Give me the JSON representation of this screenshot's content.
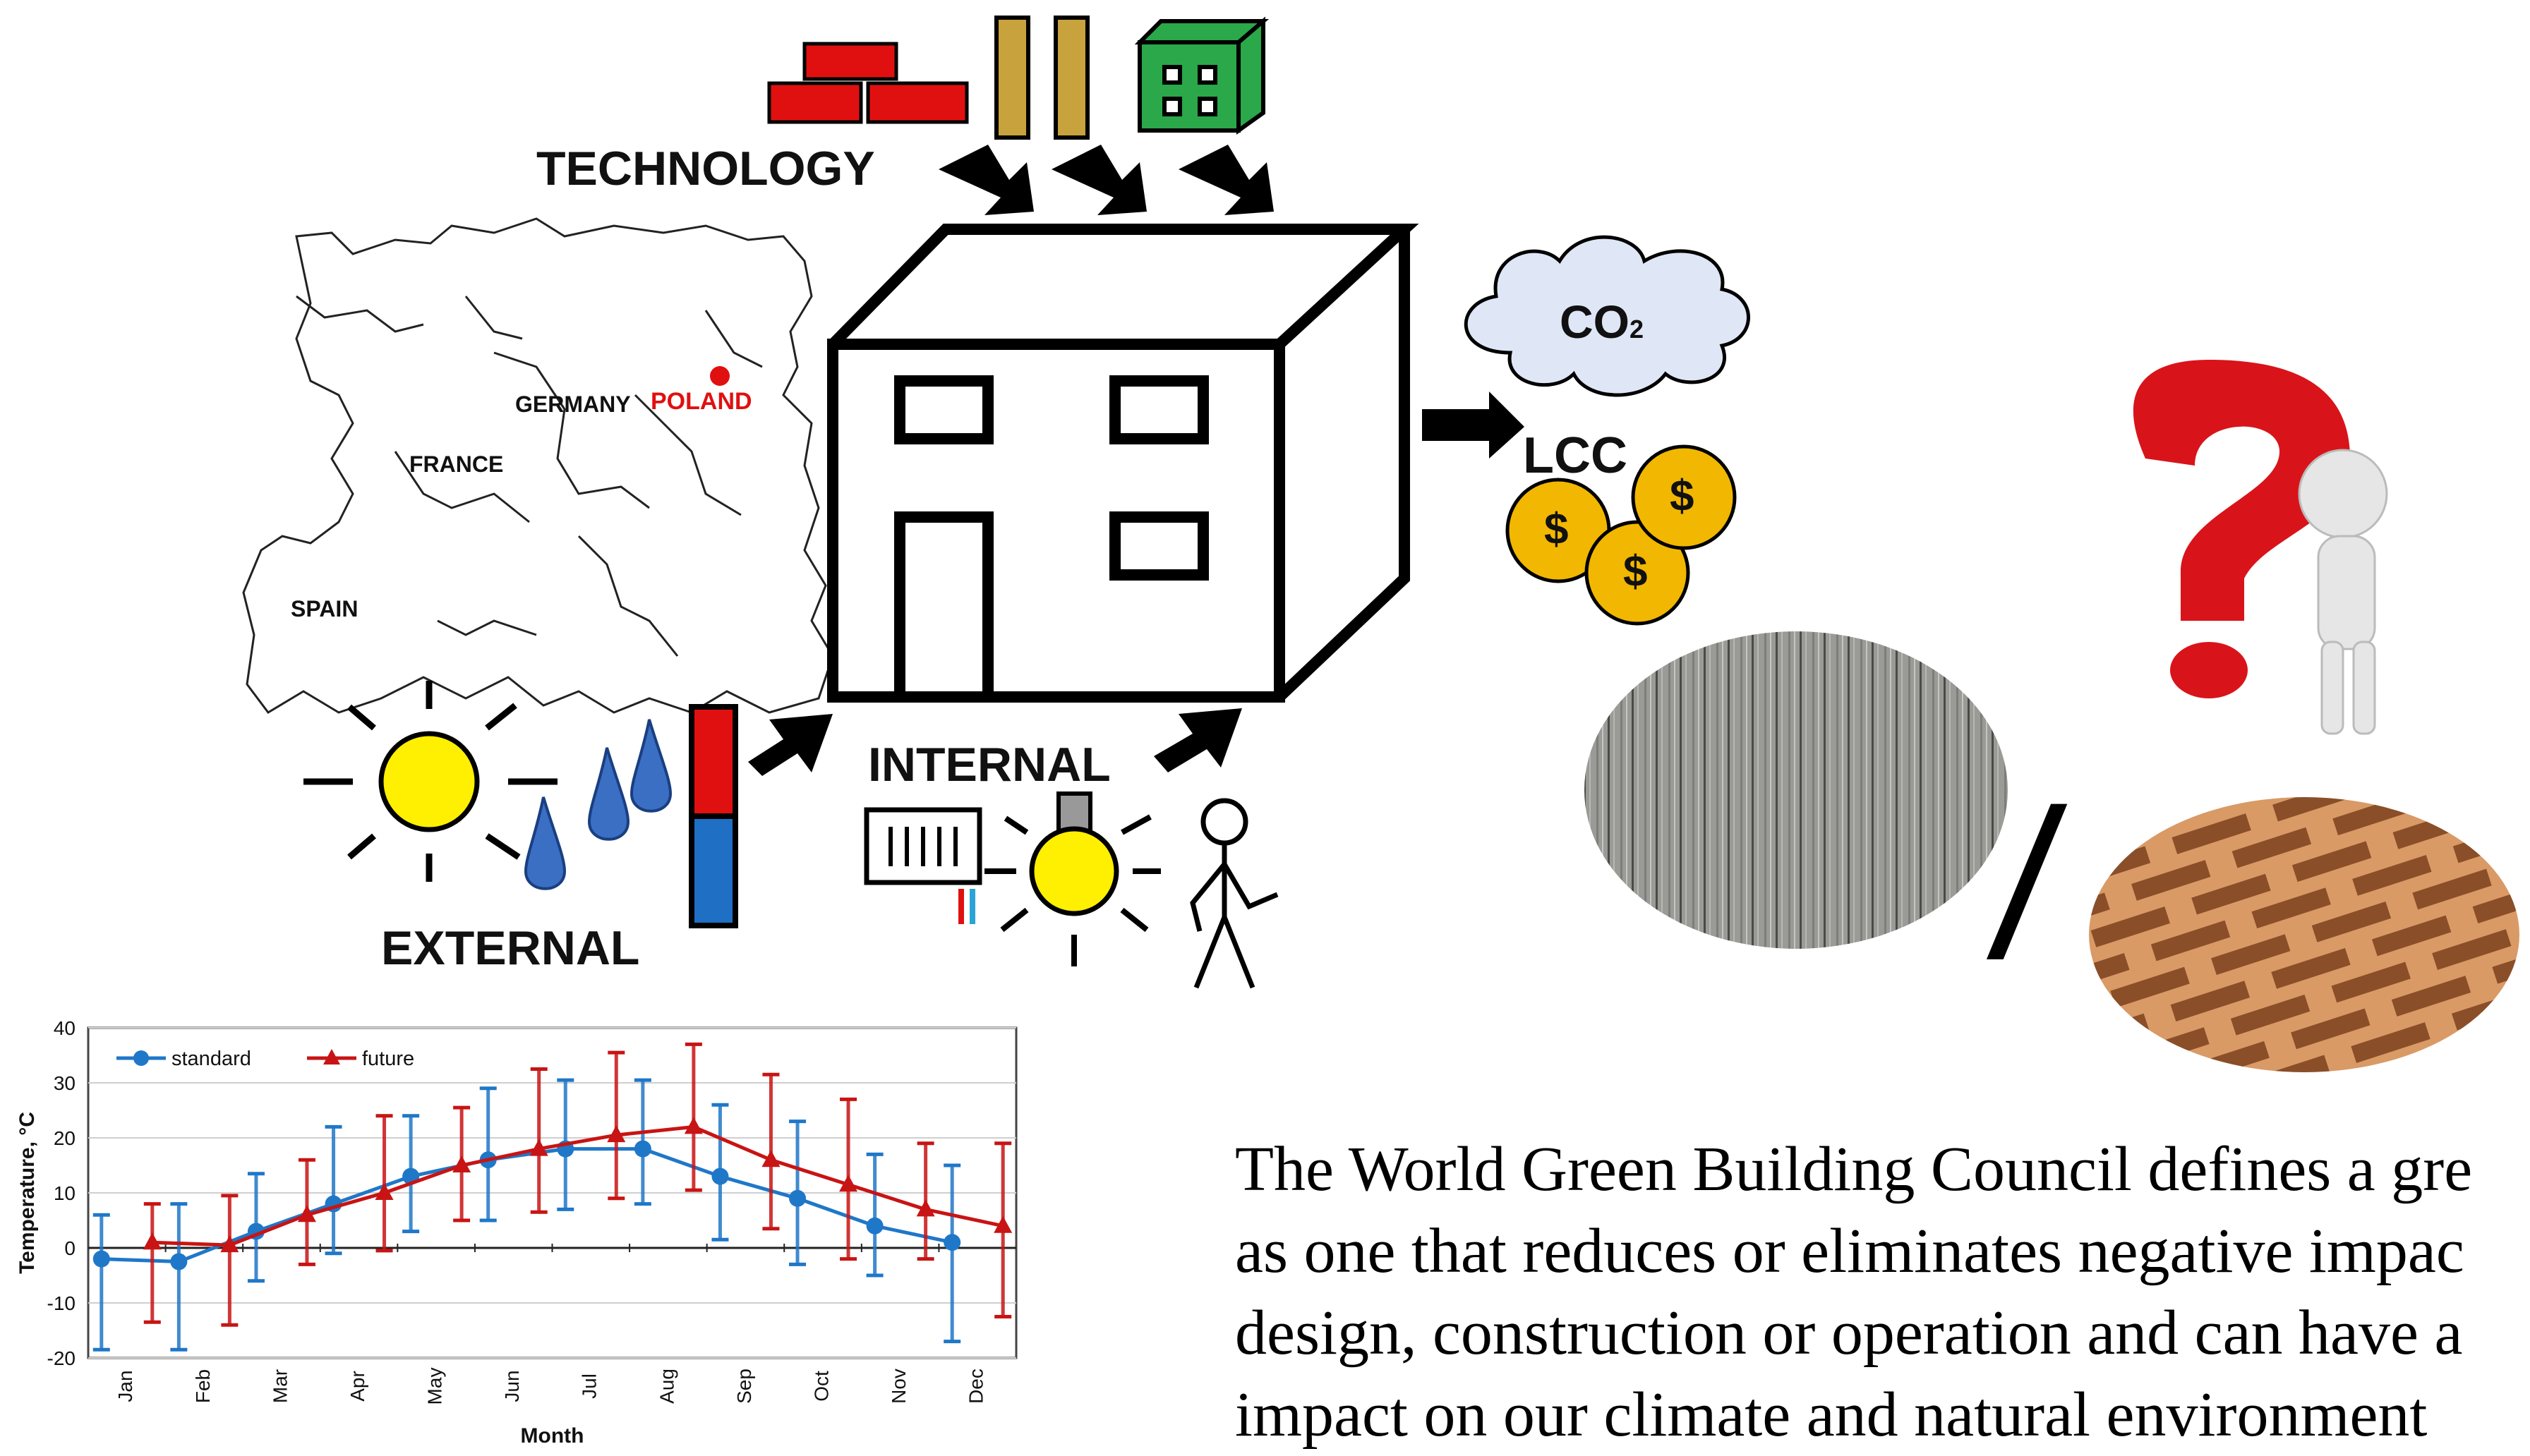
{
  "diagram": {
    "technology_label": "TECHNOLOGY",
    "external_label": "EXTERNAL",
    "internal_label": "INTERNAL",
    "co2_label": "CO",
    "co2_subscript": "2",
    "lcc_label": "LCC",
    "coin_symbol": "$",
    "map_labels": {
      "germany": "GERMANY",
      "poland": "POLAND",
      "france": "FRANCE",
      "spain": "SPAIN"
    },
    "separator": "/",
    "colors": {
      "brick": "#e01010",
      "module": "#2aa84a",
      "wood": "#c8a23c",
      "coin": "#f2b700",
      "cloud": "#dfe6f5",
      "thermo_top": "#e01010",
      "thermo_bottom": "#1f6fc4",
      "poland_red": "#e01010"
    },
    "icons": [
      "bricks-icon",
      "wood-panels-icon",
      "modular-house-icon",
      "house-icon",
      "cloud-icon",
      "coin-icon",
      "sun-icon",
      "rain-drops-icon",
      "thermometer-icon",
      "radiator-icon",
      "light-bulb-icon",
      "person-icon",
      "question-mark-figure-icon",
      "wood-texture-image",
      "brick-texture-image",
      "europe-map-icon"
    ]
  },
  "paragraph": {
    "lines": [
      "The World Green Building Council defines a gre",
      "as one that reduces or eliminates negative impac",
      "design, construction or operation and can have a",
      "impact on our climate and natural environment"
    ]
  },
  "chart_data": {
    "type": "line",
    "title": "",
    "xlabel": "Month",
    "ylabel": "Temperature, °C",
    "ylim": [
      -20,
      40
    ],
    "yticks": [
      -20,
      -10,
      0,
      10,
      20,
      30,
      40
    ],
    "categories": [
      "Jan",
      "Feb",
      "Mar",
      "Apr",
      "May",
      "Jun",
      "Jul",
      "Aug",
      "Sep",
      "Oct",
      "Nov",
      "Dec"
    ],
    "grid": true,
    "legend_position": "top-left",
    "series": [
      {
        "name": "standard",
        "color": "#1f77c8",
        "marker": "circle",
        "values": [
          -2,
          -2.5,
          3,
          8,
          13,
          16,
          18,
          18,
          13,
          9,
          4,
          1
        ],
        "err_low": [
          -18.5,
          -18.5,
          -6,
          -1,
          3,
          5,
          7,
          8,
          1.5,
          -3,
          -5,
          -17
        ],
        "err_high": [
          6,
          8,
          13.5,
          22,
          24,
          29,
          30.5,
          30.5,
          26,
          23,
          17,
          15
        ]
      },
      {
        "name": "future",
        "color": "#c81414",
        "marker": "triangle",
        "values": [
          1,
          0.5,
          6,
          10,
          15,
          18,
          20.5,
          22,
          16,
          11.5,
          7,
          4
        ],
        "err_low": [
          -13.5,
          -14,
          -3,
          -0.5,
          5,
          6.5,
          9,
          10.5,
          3.5,
          -2,
          -2,
          -12.5
        ],
        "err_high": [
          8,
          9.5,
          16,
          24,
          25.5,
          32.5,
          35.5,
          37,
          31.5,
          27,
          19,
          19
        ]
      }
    ]
  }
}
